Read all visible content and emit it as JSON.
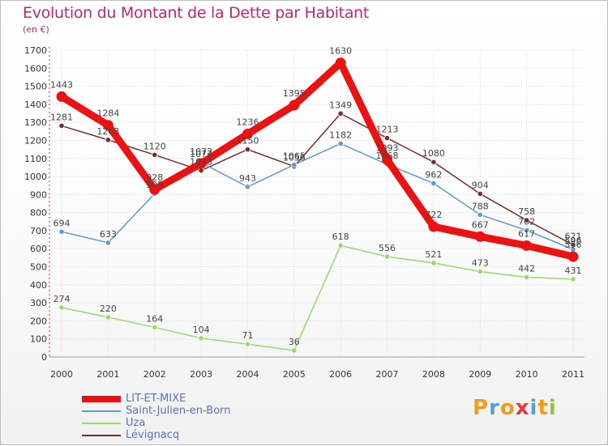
{
  "header": {
    "title": "Evolution du Montant de la Dette par Habitant",
    "subtitle": "(en €)"
  },
  "chart_data": {
    "type": "line",
    "title": "Evolution du Montant de la Dette par Habitant",
    "subtitle": "(en €)",
    "xlabel": "",
    "ylabel": "",
    "categories": [
      "2000",
      "2001",
      "2002",
      "2003",
      "2004",
      "2005",
      "2006",
      "2007",
      "2008",
      "2009",
      "2010",
      "2011"
    ],
    "ylim": [
      0,
      1700
    ],
    "yticks": [
      0,
      100,
      200,
      300,
      400,
      500,
      600,
      700,
      800,
      900,
      1000,
      1100,
      1200,
      1300,
      1400,
      1500,
      1600,
      1700
    ],
    "grid": true,
    "legend_position": "bottom-left",
    "series": [
      {
        "name": "LIT-ET-MIXE",
        "color": "#ee1111",
        "values": [
          1443,
          1284,
          928,
          1072,
          1236,
          1395,
          1630,
          1093,
          722,
          667,
          617,
          556
        ],
        "labels": [
          "1443",
          "1284",
          "928",
          "1072",
          "1236",
          "1395",
          "1630",
          "1093",
          "722",
          "667",
          "617",
          "556"
        ]
      },
      {
        "name": "Saint-Julien-en-Born",
        "color": "#5d9ccc",
        "values": [
          694,
          633,
          905,
          1077,
          943,
          1065,
          1182,
          1068,
          962,
          788,
          702,
          596
        ],
        "labels": [
          "694",
          "633",
          "905",
          "1077",
          "943",
          "1065",
          "1182",
          "1068",
          "962",
          "788",
          "702",
          "596"
        ]
      },
      {
        "name": "Uza",
        "color": "#99d86b",
        "values": [
          274,
          220,
          164,
          104,
          71,
          36,
          618,
          556,
          521,
          473,
          442,
          431
        ],
        "labels": [
          "274",
          "220",
          "164",
          "104",
          "71",
          "36",
          "618",
          "556",
          "521",
          "473",
          "442",
          "431"
        ]
      },
      {
        "name": "Lévignacq",
        "color": "#7b2b2b",
        "values": [
          1281,
          1203,
          1120,
          1033,
          1150,
          1056,
          1349,
          1213,
          1080,
          904,
          758,
          621
        ],
        "labels": [
          "1281",
          "1203",
          "1120",
          "1033",
          "1150",
          "1056",
          "1349",
          "1213",
          "1080",
          "904",
          "758",
          "621"
        ]
      }
    ]
  },
  "legend": {
    "items": [
      {
        "label": "LIT-ET-MIXE",
        "color": "#ee1111"
      },
      {
        "label": "Saint-Julien-en-Born",
        "color": "#5d9ccc"
      },
      {
        "label": "Uza",
        "color": "#99d86b"
      },
      {
        "label": "Lévignacq",
        "color": "#7b2b2b"
      }
    ]
  },
  "logo": {
    "letters": [
      "P",
      "r",
      "o",
      "x",
      "i",
      "t",
      "i"
    ],
    "colors": [
      "#f29b1c",
      "#5a9fd4",
      "#f29b1c",
      "#e53b3b",
      "#5a9fd4",
      "#f29b1c",
      "#8cc63f"
    ]
  }
}
